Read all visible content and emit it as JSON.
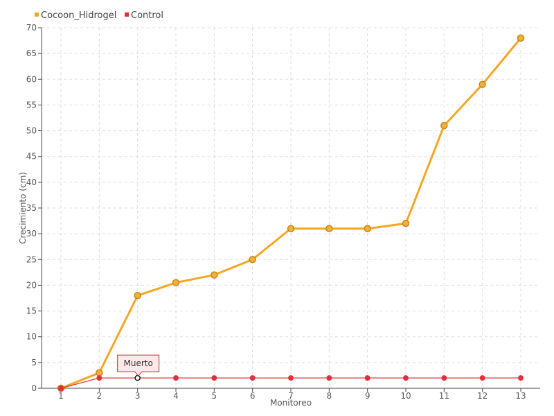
{
  "chart_data": {
    "type": "line",
    "title": "",
    "xlabel": "Monitoreo",
    "ylabel": "Crecimiento (cm)",
    "categories": [
      "1",
      "2",
      "3",
      "4",
      "5",
      "6",
      "7",
      "8",
      "9",
      "10",
      "11",
      "12",
      "13"
    ],
    "ylim": [
      0,
      70
    ],
    "yticks": [
      0,
      5,
      10,
      15,
      20,
      25,
      30,
      35,
      40,
      45,
      50,
      55,
      60,
      65,
      70
    ],
    "grid": true,
    "legend_position": "top-left",
    "series": [
      {
        "name": "Cocoon_Hidrogel",
        "color": "#f5a623",
        "marker_fill": "#f0b040",
        "marker_stroke": "#c8860d",
        "values": [
          0,
          3,
          18,
          20.5,
          22,
          25,
          31,
          31,
          31,
          32,
          51,
          59,
          68
        ]
      },
      {
        "name": "Control",
        "color": "#e0313a",
        "marker_fill": "#e0313a",
        "marker_stroke": "#e0313a",
        "values": [
          0,
          2,
          2,
          2,
          2,
          2,
          2,
          2,
          2,
          2,
          2,
          2,
          2
        ]
      }
    ],
    "annotations": [
      {
        "text": "Muerto",
        "series": 1,
        "index": 2
      }
    ]
  }
}
